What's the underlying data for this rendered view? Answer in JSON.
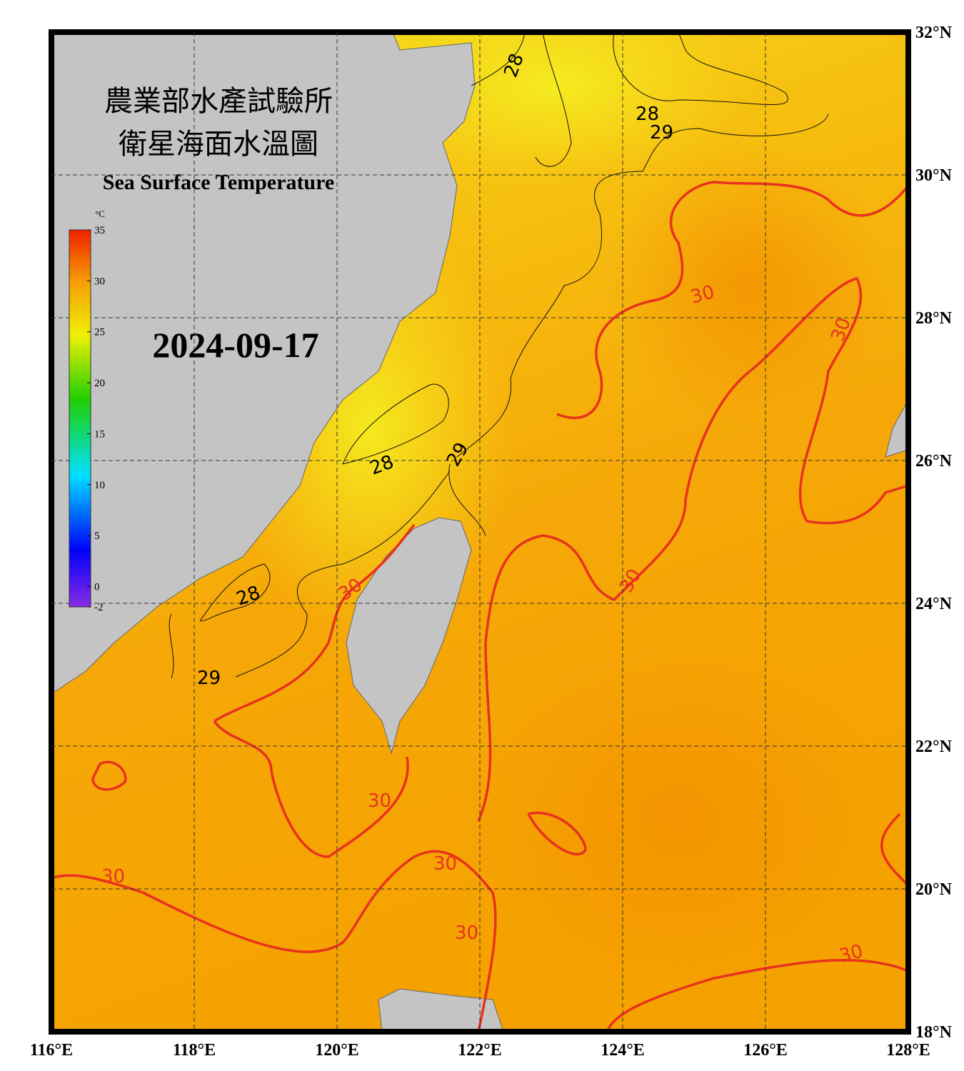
{
  "header": {
    "title_zh_1": "農業部水產試驗所",
    "title_zh_2": "衛星海面水溫圖",
    "title_en": "Sea Surface Temperature",
    "date": "2024-09-17"
  },
  "colorbar": {
    "unit": "°C",
    "range": [
      -2,
      35
    ],
    "ticks": [
      35,
      30,
      25,
      20,
      15,
      10,
      5,
      0,
      -2
    ]
  },
  "map": {
    "lon_range": [
      116,
      128
    ],
    "lat_range": [
      18,
      32
    ],
    "lon_ticks": [
      {
        "value": 116,
        "label": "116°E"
      },
      {
        "value": 118,
        "label": "118°E"
      },
      {
        "value": 120,
        "label": "120°E"
      },
      {
        "value": 122,
        "label": "122°E"
      },
      {
        "value": 124,
        "label": "124°E"
      },
      {
        "value": 126,
        "label": "126°E"
      },
      {
        "value": 128,
        "label": "128°E"
      }
    ],
    "lat_ticks": [
      {
        "value": 32,
        "label": "32°N"
      },
      {
        "value": 30,
        "label": "30°N"
      },
      {
        "value": 28,
        "label": "28°N"
      },
      {
        "value": 26,
        "label": "26°N"
      },
      {
        "value": 24,
        "label": "24°N"
      },
      {
        "value": 22,
        "label": "22°N"
      },
      {
        "value": 20,
        "label": "20°N"
      },
      {
        "value": 18,
        "label": "18°N"
      }
    ],
    "contour_labels": [
      28,
      28,
      29,
      30,
      30,
      28,
      29,
      28,
      30,
      29,
      30,
      30,
      30,
      30,
      30,
      30
    ]
  }
}
